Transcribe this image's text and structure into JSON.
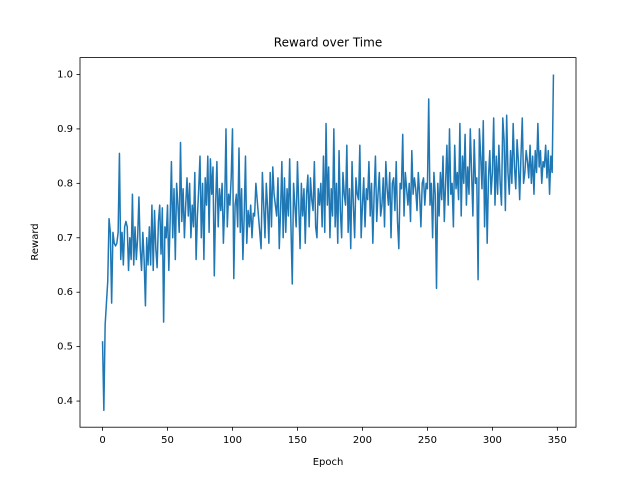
{
  "chart_data": {
    "type": "line",
    "title": "Reward over Time",
    "x_label": "Epoch",
    "y_label": "Reward",
    "color": "#1f77b4",
    "x": [
      0,
      1,
      2,
      3,
      4,
      5,
      6,
      7,
      8,
      9,
      10,
      11,
      12,
      13,
      14,
      15,
      16,
      17,
      18,
      19,
      20,
      21,
      22,
      23,
      24,
      25,
      26,
      27,
      28,
      29,
      30,
      31,
      32,
      33,
      34,
      35,
      36,
      37,
      38,
      39,
      40,
      41,
      42,
      43,
      44,
      45,
      46,
      47,
      48,
      49,
      50,
      51,
      52,
      53,
      54,
      55,
      56,
      57,
      58,
      59,
      60,
      61,
      62,
      63,
      64,
      65,
      66,
      67,
      68,
      69,
      70,
      71,
      72,
      73,
      74,
      75,
      76,
      77,
      78,
      79,
      80,
      81,
      82,
      83,
      84,
      85,
      86,
      87,
      88,
      89,
      90,
      91,
      92,
      93,
      94,
      95,
      96,
      97,
      98,
      99,
      100,
      101,
      102,
      103,
      104,
      105,
      106,
      107,
      108,
      109,
      110,
      111,
      112,
      113,
      114,
      115,
      116,
      117,
      118,
      119,
      120,
      121,
      122,
      123,
      124,
      125,
      126,
      127,
      128,
      129,
      130,
      131,
      132,
      133,
      134,
      135,
      136,
      137,
      138,
      139,
      140,
      141,
      142,
      143,
      144,
      145,
      146,
      147,
      148,
      149,
      150,
      151,
      152,
      153,
      154,
      155,
      156,
      157,
      158,
      159,
      160,
      161,
      162,
      163,
      164,
      165,
      166,
      167,
      168,
      169,
      170,
      171,
      172,
      173,
      174,
      175,
      176,
      177,
      178,
      179,
      180,
      181,
      182,
      183,
      184,
      185,
      186,
      187,
      188,
      189,
      190,
      191,
      192,
      193,
      194,
      195,
      196,
      197,
      198,
      199,
      200,
      201,
      202,
      203,
      204,
      205,
      206,
      207,
      208,
      209,
      210,
      211,
      212,
      213,
      214,
      215,
      216,
      217,
      218,
      219,
      220,
      221,
      222,
      223,
      224,
      225,
      226,
      227,
      228,
      229,
      230,
      231,
      232,
      233,
      234,
      235,
      236,
      237,
      238,
      239,
      240,
      241,
      242,
      243,
      244,
      245,
      246,
      247,
      248,
      249,
      250,
      251,
      252,
      253,
      254,
      255,
      256,
      257,
      258,
      259,
      260,
      261,
      262,
      263,
      264,
      265,
      266,
      267,
      268,
      269,
      270,
      271,
      272,
      273,
      274,
      275,
      276,
      277,
      278,
      279,
      280,
      281,
      282,
      283,
      284,
      285,
      286,
      287,
      288,
      289,
      290,
      291,
      292,
      293,
      294,
      295,
      296,
      297,
      298,
      299,
      300,
      301,
      302,
      303,
      304,
      305,
      306,
      307,
      308,
      309,
      310,
      311,
      312,
      313,
      314,
      315,
      316,
      317,
      318,
      319,
      320,
      321,
      322,
      323,
      324,
      325,
      326,
      327,
      328,
      329,
      330,
      331,
      332,
      333,
      334,
      335,
      336,
      337,
      338,
      339,
      340,
      341,
      342,
      343,
      344,
      345,
      346,
      347
    ],
    "values": [
      0.51,
      0.383,
      0.54,
      0.58,
      0.62,
      0.735,
      0.71,
      0.58,
      0.71,
      0.69,
      0.685,
      0.69,
      0.71,
      0.855,
      0.66,
      0.71,
      0.65,
      0.72,
      0.73,
      0.72,
      0.64,
      0.7,
      0.66,
      0.78,
      0.65,
      0.72,
      0.66,
      0.7,
      0.775,
      0.68,
      0.64,
      0.71,
      0.66,
      0.575,
      0.7,
      0.65,
      0.72,
      0.65,
      0.76,
      0.64,
      0.75,
      0.68,
      0.645,
      0.73,
      0.76,
      0.67,
      0.755,
      0.545,
      0.72,
      0.7,
      0.76,
      0.64,
      0.73,
      0.84,
      0.7,
      0.79,
      0.66,
      0.8,
      0.76,
      0.71,
      0.875,
      0.73,
      0.79,
      0.7,
      0.76,
      0.81,
      0.74,
      0.8,
      0.7,
      0.76,
      0.72,
      0.82,
      0.66,
      0.74,
      0.79,
      0.85,
      0.7,
      0.8,
      0.66,
      0.81,
      0.76,
      0.85,
      0.71,
      0.845,
      0.78,
      0.83,
      0.63,
      0.76,
      0.84,
      0.72,
      0.79,
      0.75,
      0.8,
      0.69,
      0.76,
      0.9,
      0.72,
      0.78,
      0.76,
      0.81,
      0.9,
      0.625,
      0.76,
      0.78,
      0.72,
      0.865,
      0.71,
      0.79,
      0.66,
      0.74,
      0.85,
      0.69,
      0.75,
      0.72,
      0.76,
      0.7,
      0.745,
      0.74,
      0.8,
      0.77,
      0.74,
      0.71,
      0.68,
      0.82,
      0.76,
      0.7,
      0.8,
      0.755,
      0.69,
      0.82,
      0.72,
      0.83,
      0.78,
      0.76,
      0.74,
      0.81,
      0.68,
      0.75,
      0.84,
      0.7,
      0.81,
      0.71,
      0.79,
      0.74,
      0.845,
      0.72,
      0.615,
      0.8,
      0.76,
      0.72,
      0.84,
      0.76,
      0.68,
      0.8,
      0.74,
      0.79,
      0.69,
      0.78,
      0.815,
      0.72,
      0.81,
      0.77,
      0.75,
      0.84,
      0.72,
      0.7,
      0.79,
      0.76,
      0.8,
      0.72,
      0.85,
      0.71,
      0.91,
      0.76,
      0.83,
      0.7,
      0.79,
      0.74,
      0.9,
      0.72,
      0.8,
      0.69,
      0.86,
      0.75,
      0.7,
      0.82,
      0.78,
      0.76,
      0.87,
      0.71,
      0.79,
      0.68,
      0.84,
      0.76,
      0.7,
      0.81,
      0.78,
      0.77,
      0.87,
      0.7,
      0.76,
      0.81,
      0.72,
      0.79,
      0.77,
      0.84,
      0.74,
      0.8,
      0.69,
      0.78,
      0.85,
      0.73,
      0.78,
      0.82,
      0.74,
      0.76,
      0.81,
      0.72,
      0.84,
      0.79,
      0.76,
      0.82,
      0.7,
      0.8,
      0.81,
      0.75,
      0.84,
      0.73,
      0.68,
      0.8,
      0.79,
      0.89,
      0.74,
      0.82,
      0.79,
      0.76,
      0.8,
      0.73,
      0.86,
      0.78,
      0.81,
      0.79,
      0.75,
      0.82,
      0.78,
      0.72,
      0.8,
      0.81,
      0.76,
      0.8,
      0.79,
      0.955,
      0.76,
      0.8,
      0.7,
      0.82,
      0.78,
      0.607,
      0.8,
      0.74,
      0.82,
      0.77,
      0.85,
      0.73,
      0.8,
      0.87,
      0.76,
      0.9,
      0.78,
      0.8,
      0.72,
      0.87,
      0.79,
      0.82,
      0.77,
      0.91,
      0.74,
      0.85,
      0.8,
      0.89,
      0.76,
      0.83,
      0.78,
      0.9,
      0.82,
      0.74,
      0.88,
      0.8,
      0.81,
      0.623,
      0.9,
      0.85,
      0.79,
      0.915,
      0.72,
      0.84,
      0.69,
      0.81,
      0.86,
      0.78,
      0.82,
      0.92,
      0.76,
      0.85,
      0.78,
      0.87,
      0.8,
      0.76,
      0.92,
      0.88,
      0.75,
      0.925,
      0.82,
      0.78,
      0.86,
      0.8,
      0.91,
      0.83,
      0.79,
      0.88,
      0.84,
      0.77,
      0.85,
      0.92,
      0.8,
      0.82,
      0.86,
      0.84,
      0.81,
      0.87,
      0.8,
      0.85,
      0.78,
      0.86,
      0.82,
      0.91,
      0.83,
      0.86,
      0.8,
      0.84,
      0.83,
      0.87,
      0.81,
      0.86,
      0.78,
      0.85,
      0.82,
      1.0
    ],
    "xlim": [
      -17.35,
      364.35
    ],
    "xticks": [
      0,
      50,
      100,
      150,
      200,
      250,
      300,
      350
    ],
    "ylim": [
      0.352,
      1.031
    ],
    "yticks": [
      0.4,
      0.5,
      0.6,
      0.7,
      0.8,
      0.9,
      {
        "value": 1,
        "label": "1.0"
      }
    ],
    "grid": false
  }
}
